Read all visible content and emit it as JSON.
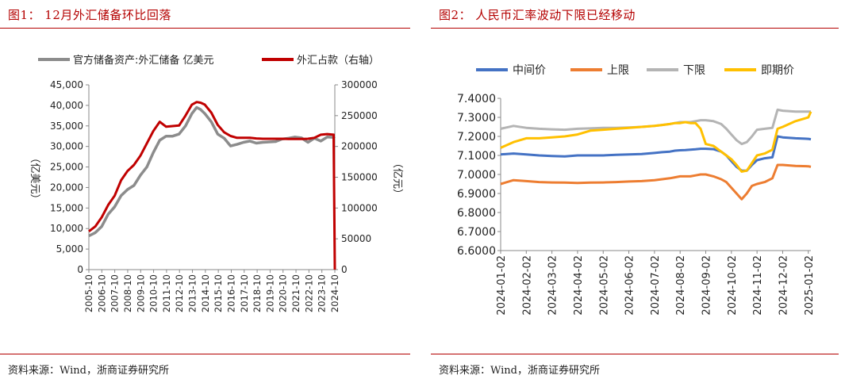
{
  "left_panel": {
    "title": "图1：  12月外汇储备环比回落",
    "source": "资料来源：Wind，浙商证券研究所"
  },
  "right_panel": {
    "title": "图2：  人民币汇率波动下限已经移动",
    "source": "资料来源：Wind，浙商证券研究所"
  },
  "colors": {
    "accent_red": "#b40000",
    "gray": "#8c8c8c",
    "red": "#c00000",
    "blue": "#4472c4",
    "orange": "#ed7d31",
    "lightgray": "#b4b4b4",
    "yellow": "#ffc000"
  },
  "chart_data": [
    {
      "type": "line",
      "title": "",
      "ylabel": "（亿美元）",
      "y2label": "（亿元）",
      "ylim": [
        0,
        45000
      ],
      "y2lim": [
        0,
        300000
      ],
      "yticks": [
        "0",
        "5,000",
        "10,000",
        "15,000",
        "20,000",
        "25,000",
        "30,000",
        "35,000",
        "40,000",
        "45,000"
      ],
      "y2ticks": [
        "0",
        "50000",
        "100000",
        "150000",
        "200000",
        "250000",
        "300000"
      ],
      "xticks": [
        "2005-10",
        "2006-10",
        "2007-10",
        "2008-10",
        "2009-10",
        "2010-10",
        "2011-10",
        "2012-10",
        "2013-10",
        "2014-10",
        "2015-10",
        "2016-10",
        "2017-10",
        "2018-10",
        "2019-10",
        "2020-10",
        "2021-10",
        "2022-10",
        "2023-10",
        "2024-10"
      ],
      "legend_position": "top",
      "x": [
        2005.83,
        2006.33,
        2006.83,
        2007.33,
        2007.83,
        2008.33,
        2008.83,
        2009.33,
        2009.83,
        2010.33,
        2010.83,
        2011.33,
        2011.83,
        2012.33,
        2012.83,
        2013.33,
        2013.83,
        2014.2,
        2014.5,
        2014.83,
        2015.33,
        2015.83,
        2016.33,
        2016.83,
        2017.33,
        2017.83,
        2018.33,
        2018.83,
        2019.33,
        2019.83,
        2020.33,
        2020.83,
        2021.33,
        2021.83,
        2022.33,
        2022.83,
        2023.33,
        2023.83,
        2024.33,
        2024.83,
        2024.92
      ],
      "series": [
        {
          "name": "官方储备资产:外汇储备 亿美元",
          "axis": "left",
          "values": [
            8200,
            9000,
            10500,
            13500,
            15300,
            18000,
            19500,
            20500,
            23000,
            25000,
            28500,
            31500,
            32500,
            32500,
            33000,
            35000,
            38000,
            39500,
            39000,
            38000,
            36000,
            33000,
            32000,
            30100,
            30500,
            31000,
            31300,
            30800,
            31000,
            31100,
            31200,
            31800,
            32000,
            32300,
            32100,
            31000,
            32000,
            31300,
            32300,
            32200,
            32400
          ]
        },
        {
          "name": "外汇占款（右轴）",
          "axis": "right",
          "values": [
            62000,
            70000,
            85000,
            105000,
            120000,
            145000,
            160000,
            170000,
            185000,
            205000,
            225000,
            240000,
            232000,
            233000,
            234000,
            250000,
            268000,
            272000,
            271000,
            268000,
            255000,
            235000,
            223000,
            217000,
            214000,
            214000,
            214000,
            213000,
            212500,
            212500,
            212500,
            212500,
            212000,
            212000,
            212000,
            212500,
            214000,
            219000,
            220000,
            219000,
            0
          ]
        }
      ]
    },
    {
      "type": "line",
      "title": "",
      "ylim": [
        6.6,
        7.4
      ],
      "yticks": [
        "6.6000",
        "6.7000",
        "6.8000",
        "6.9000",
        "7.0000",
        "7.1000",
        "7.2000",
        "7.3000",
        "7.4000"
      ],
      "xticks": [
        "2024-01-02",
        "2024-02-02",
        "2024-03-02",
        "2024-04-02",
        "2024-05-02",
        "2024-06-02",
        "2024-07-02",
        "2024-08-02",
        "2024-09-02",
        "2024-10-02",
        "2024-11-02",
        "2024-12-02",
        "2025-01-02"
      ],
      "legend_position": "top",
      "x": [
        0,
        0.5,
        1,
        1.5,
        2,
        2.5,
        3,
        3.5,
        4,
        4.5,
        5,
        5.5,
        6,
        6.3,
        6.6,
        6.8,
        7,
        7.2,
        7.4,
        7.6,
        7.8,
        8,
        8.3,
        8.6,
        8.8,
        9,
        9.2,
        9.4,
        9.6,
        9.8,
        10,
        10.3,
        10.6,
        10.8,
        11,
        11.5,
        12,
        12.1
      ],
      "series": [
        {
          "name": "中间价",
          "values": [
            7.105,
            7.11,
            7.105,
            7.1,
            7.097,
            7.095,
            7.1,
            7.1,
            7.1,
            7.103,
            7.105,
            7.107,
            7.113,
            7.117,
            7.12,
            7.125,
            7.127,
            7.128,
            7.13,
            7.132,
            7.135,
            7.135,
            7.133,
            7.12,
            7.1,
            7.07,
            7.04,
            7.02,
            7.02,
            7.05,
            7.075,
            7.085,
            7.09,
            7.2,
            7.195,
            7.19,
            7.187,
            7.185
          ]
        },
        {
          "name": "上限",
          "values": [
            6.95,
            6.97,
            6.965,
            6.96,
            6.958,
            6.957,
            6.955,
            6.957,
            6.958,
            6.96,
            6.963,
            6.965,
            6.97,
            6.975,
            6.98,
            6.985,
            6.99,
            6.99,
            6.99,
            6.995,
            7.0,
            7.0,
            6.99,
            6.975,
            6.96,
            6.93,
            6.9,
            6.87,
            6.9,
            6.94,
            6.95,
            6.96,
            6.98,
            7.05,
            7.05,
            7.045,
            7.043,
            7.04
          ]
        },
        {
          "name": "下限",
          "values": [
            7.24,
            7.255,
            7.245,
            7.24,
            7.237,
            7.235,
            7.24,
            7.242,
            7.245,
            7.245,
            7.247,
            7.25,
            7.255,
            7.26,
            7.265,
            7.27,
            7.275,
            7.275,
            7.275,
            7.28,
            7.285,
            7.285,
            7.28,
            7.265,
            7.24,
            7.21,
            7.18,
            7.16,
            7.17,
            7.2,
            7.235,
            7.24,
            7.245,
            7.34,
            7.335,
            7.33,
            7.33,
            7.33
          ]
        },
        {
          "name": "即期价",
          "values": [
            7.14,
            7.17,
            7.19,
            7.19,
            7.195,
            7.2,
            7.21,
            7.23,
            7.235,
            7.24,
            7.245,
            7.25,
            7.255,
            7.26,
            7.265,
            7.27,
            7.27,
            7.275,
            7.27,
            7.27,
            7.24,
            7.16,
            7.15,
            7.12,
            7.1,
            7.08,
            7.05,
            7.015,
            7.02,
            7.06,
            7.1,
            7.11,
            7.13,
            7.24,
            7.25,
            7.28,
            7.3,
            7.33
          ]
        }
      ]
    }
  ]
}
